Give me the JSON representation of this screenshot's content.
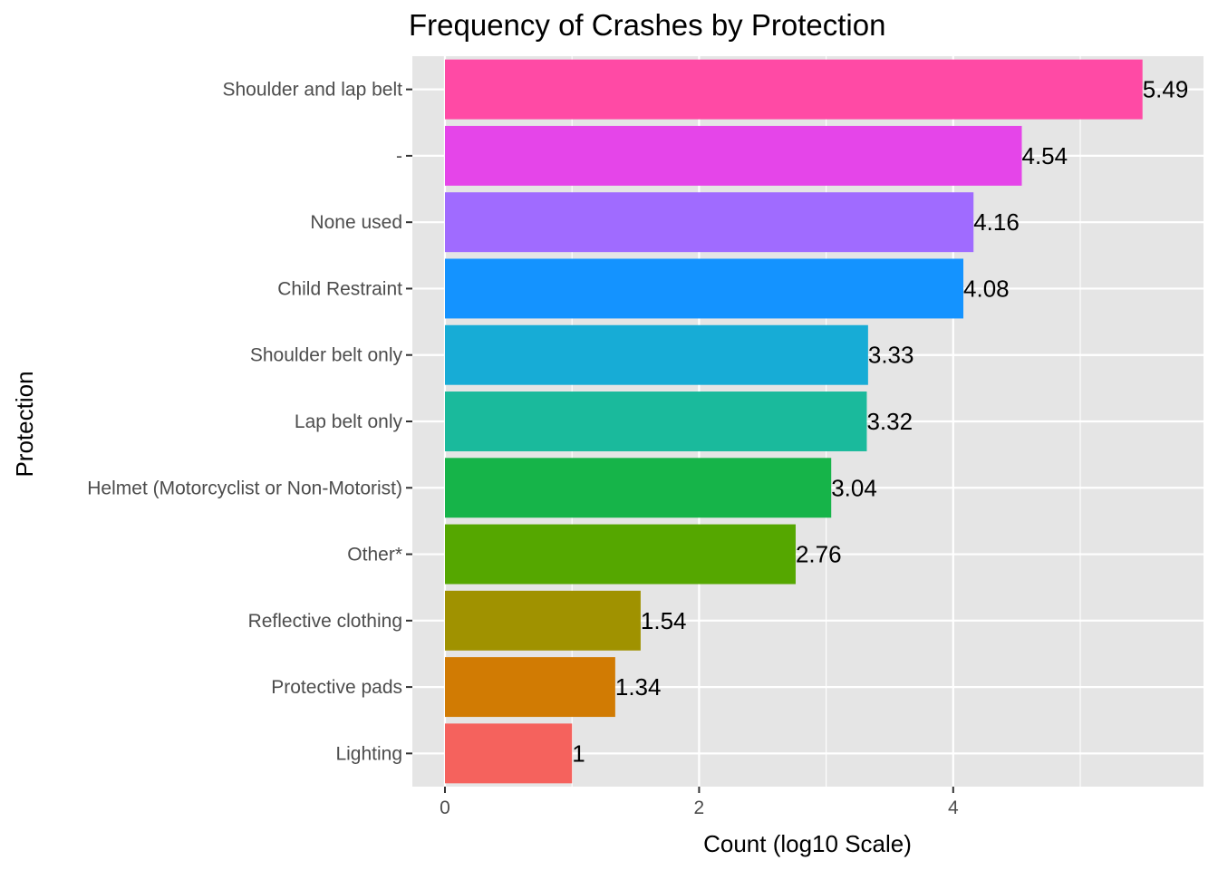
{
  "chart_data": {
    "type": "bar",
    "orientation": "horizontal",
    "title": "Frequency of Crashes by Protection",
    "xlabel": "Count (log10 Scale)",
    "ylabel": "Protection",
    "xlim": [
      0,
      5.76
    ],
    "x_ticks": [
      0,
      2,
      4
    ],
    "grid": true,
    "legend": "none",
    "categories": [
      "Shoulder and lap belt",
      "-",
      "None used",
      "Child Restraint",
      "Shoulder belt only",
      "Lap belt only",
      "Helmet (Motorcyclist or Non-Motorist)",
      "Other*",
      "Reflective clothing",
      "Protective pads",
      "Lighting"
    ],
    "values": [
      5.49,
      4.54,
      4.16,
      4.08,
      3.33,
      3.32,
      3.04,
      2.76,
      1.54,
      1.34,
      1
    ],
    "value_labels": [
      "5.49",
      "4.54",
      "4.16",
      "4.08",
      "3.33",
      "3.32",
      "3.04",
      "2.76",
      "1.54",
      "1.34",
      "1"
    ],
    "colors": [
      "#FF4AA5",
      "#E545E9",
      "#A06BFF",
      "#1493FF",
      "#17ACD6",
      "#1ABA9C",
      "#16B449",
      "#55A700",
      "#A09200",
      "#D17B03",
      "#F5625D"
    ],
    "panel_background": "#E5E5E5",
    "grid_color": "#FFFFFF"
  }
}
